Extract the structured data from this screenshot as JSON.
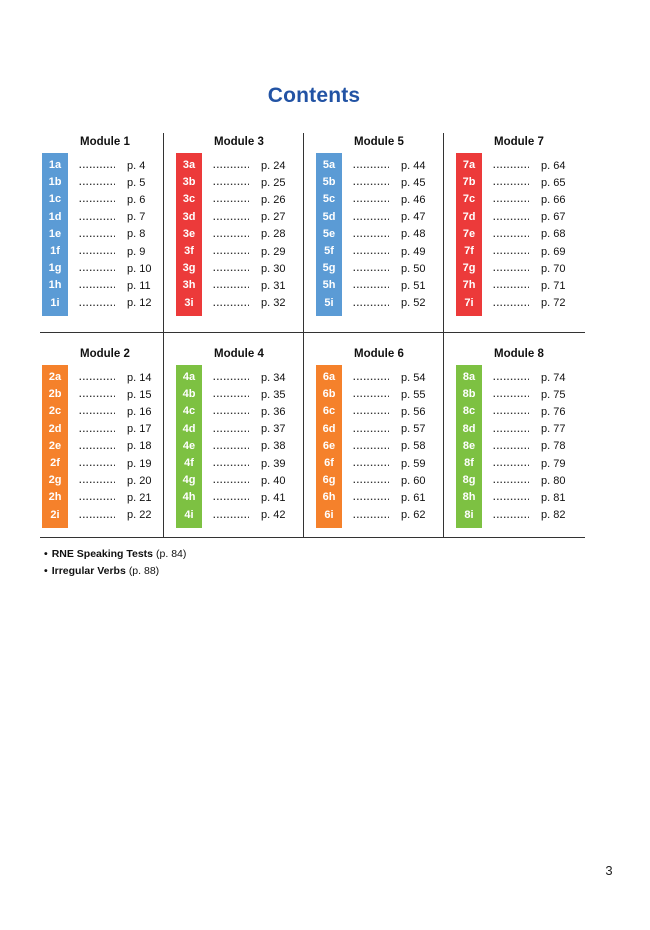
{
  "page": {
    "title": "Contents",
    "page_number": "3",
    "leader_dots": ".............."
  },
  "colors": {
    "blue": "#5B9BD5",
    "red": "#EC3A3A",
    "orange": "#F5812B",
    "green": "#7DC142",
    "title_blue": "#2253A4",
    "grid_line": "#333333"
  },
  "grid": {
    "rows": [
      {
        "modules": [
          {
            "title": "Module 1",
            "color": "blue",
            "entries": [
              {
                "code": "1a",
                "page": "p. 4"
              },
              {
                "code": "1b",
                "page": "p. 5"
              },
              {
                "code": "1c",
                "page": "p. 6"
              },
              {
                "code": "1d",
                "page": "p. 7"
              },
              {
                "code": "1e",
                "page": "p. 8"
              },
              {
                "code": "1f",
                "page": "p. 9"
              },
              {
                "code": "1g",
                "page": "p. 10"
              },
              {
                "code": "1h",
                "page": "p. 11"
              },
              {
                "code": "1i",
                "page": "p. 12"
              }
            ]
          },
          {
            "title": "Module 3",
            "color": "red",
            "entries": [
              {
                "code": "3a",
                "page": "p. 24"
              },
              {
                "code": "3b",
                "page": "p. 25"
              },
              {
                "code": "3c",
                "page": "p. 26"
              },
              {
                "code": "3d",
                "page": "p. 27"
              },
              {
                "code": "3e",
                "page": "p. 28"
              },
              {
                "code": "3f",
                "page": "p. 29"
              },
              {
                "code": "3g",
                "page": "p. 30"
              },
              {
                "code": "3h",
                "page": "p. 31"
              },
              {
                "code": "3i",
                "page": "p. 32"
              }
            ]
          },
          {
            "title": "Module 5",
            "color": "blue",
            "entries": [
              {
                "code": "5a",
                "page": "p. 44"
              },
              {
                "code": "5b",
                "page": "p. 45"
              },
              {
                "code": "5c",
                "page": "p. 46"
              },
              {
                "code": "5d",
                "page": "p. 47"
              },
              {
                "code": "5e",
                "page": "p. 48"
              },
              {
                "code": "5f",
                "page": "p. 49"
              },
              {
                "code": "5g",
                "page": "p. 50"
              },
              {
                "code": "5h",
                "page": "p. 51"
              },
              {
                "code": "5i",
                "page": "p. 52"
              }
            ]
          },
          {
            "title": "Module 7",
            "color": "red",
            "entries": [
              {
                "code": "7a",
                "page": "p. 64"
              },
              {
                "code": "7b",
                "page": "p. 65"
              },
              {
                "code": "7c",
                "page": "p. 66"
              },
              {
                "code": "7d",
                "page": "p. 67"
              },
              {
                "code": "7e",
                "page": "p. 68"
              },
              {
                "code": "7f",
                "page": "p. 69"
              },
              {
                "code": "7g",
                "page": "p. 70"
              },
              {
                "code": "7h",
                "page": "p. 71"
              },
              {
                "code": "7i",
                "page": "p. 72"
              }
            ]
          }
        ]
      },
      {
        "modules": [
          {
            "title": "Module 2",
            "color": "orange",
            "entries": [
              {
                "code": "2a",
                "page": "p. 14"
              },
              {
                "code": "2b",
                "page": "p. 15"
              },
              {
                "code": "2c",
                "page": "p. 16"
              },
              {
                "code": "2d",
                "page": "p. 17"
              },
              {
                "code": "2e",
                "page": "p. 18"
              },
              {
                "code": "2f",
                "page": "p. 19"
              },
              {
                "code": "2g",
                "page": "p. 20"
              },
              {
                "code": "2h",
                "page": "p. 21"
              },
              {
                "code": "2i",
                "page": "p. 22"
              }
            ]
          },
          {
            "title": "Module 4",
            "color": "green",
            "entries": [
              {
                "code": "4a",
                "page": "p. 34"
              },
              {
                "code": "4b",
                "page": "p. 35"
              },
              {
                "code": "4c",
                "page": "p. 36"
              },
              {
                "code": "4d",
                "page": "p. 37"
              },
              {
                "code": "4e",
                "page": "p. 38"
              },
              {
                "code": "4f",
                "page": "p. 39"
              },
              {
                "code": "4g",
                "page": "p. 40"
              },
              {
                "code": "4h",
                "page": "p. 41"
              },
              {
                "code": "4i",
                "page": "p. 42"
              }
            ]
          },
          {
            "title": "Module 6",
            "color": "orange",
            "entries": [
              {
                "code": "6a",
                "page": "p. 54"
              },
              {
                "code": "6b",
                "page": "p. 55"
              },
              {
                "code": "6c",
                "page": "p. 56"
              },
              {
                "code": "6d",
                "page": "p. 57"
              },
              {
                "code": "6e",
                "page": "p. 58"
              },
              {
                "code": "6f",
                "page": "p. 59"
              },
              {
                "code": "6g",
                "page": "p. 60"
              },
              {
                "code": "6h",
                "page": "p. 61"
              },
              {
                "code": "6i",
                "page": "p. 62"
              }
            ]
          },
          {
            "title": "Module 8",
            "color": "green",
            "entries": [
              {
                "code": "8a",
                "page": "p. 74"
              },
              {
                "code": "8b",
                "page": "p. 75"
              },
              {
                "code": "8c",
                "page": "p. 76"
              },
              {
                "code": "8d",
                "page": "p. 77"
              },
              {
                "code": "8e",
                "page": "p. 78"
              },
              {
                "code": "8f",
                "page": "p. 79"
              },
              {
                "code": "8g",
                "page": "p. 80"
              },
              {
                "code": "8h",
                "page": "p. 81"
              },
              {
                "code": "8i",
                "page": "p. 82"
              }
            ]
          }
        ]
      }
    ]
  },
  "extras": [
    {
      "label": "RNE Speaking Tests",
      "page": "(p. 84)"
    },
    {
      "label": "Irregular Verbs",
      "page": "(p. 88)"
    }
  ]
}
